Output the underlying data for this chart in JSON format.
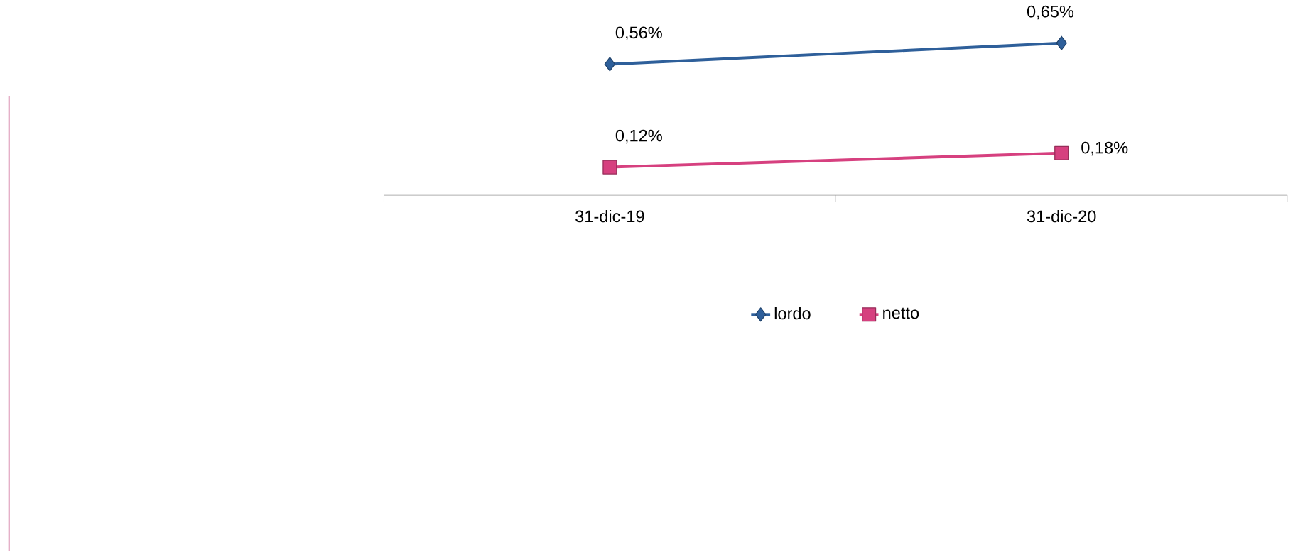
{
  "chart_data": {
    "type": "line",
    "categories": [
      "31-dic-19",
      "31-dic-20"
    ],
    "tick_labels": "x",
    "legend": "bottom",
    "series": [
      {
        "name": "lordo",
        "color": "#2e5f9a",
        "marker": "diamond",
        "values": [
          0.56,
          0.65
        ],
        "value_labels": [
          "0,56%",
          "0,65%"
        ]
      },
      {
        "name": "netto",
        "color": "#d6407f",
        "marker": "square",
        "values": [
          0.12,
          0.18
        ],
        "value_labels": [
          "0,12%",
          "0,18%"
        ]
      }
    ]
  }
}
